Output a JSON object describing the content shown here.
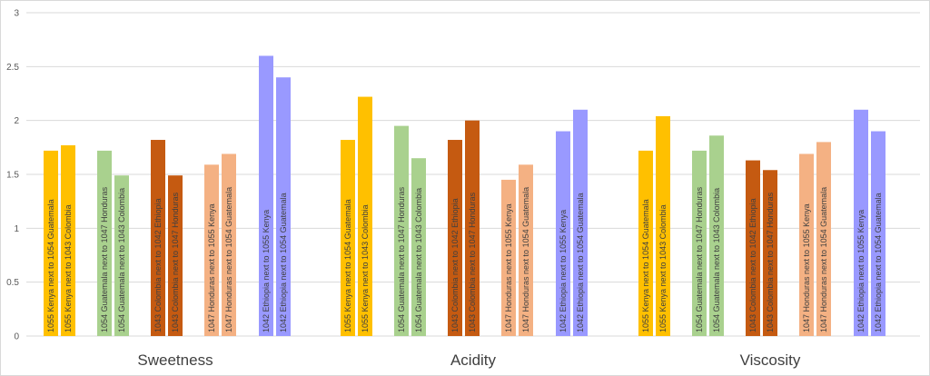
{
  "chart_data": {
    "type": "bar",
    "title": "",
    "xlabel": "",
    "ylabel": "",
    "ylim": [
      0,
      3
    ],
    "yticks": [
      "0",
      "0.5",
      "1",
      "1.5",
      "2",
      "2.5",
      "3"
    ],
    "grid": true,
    "legend": "none",
    "categories": [
      "Sweetness",
      "Acidity",
      "Viscosity"
    ],
    "series": [
      {
        "label": "1055 Kenya next to 1054 Guatemala",
        "color": "#FFC000",
        "values": [
          1.72,
          1.82,
          1.72
        ]
      },
      {
        "label": "1055 Kenya next to 1043 Colombia",
        "color": "#FFC000",
        "values": [
          1.77,
          2.22,
          2.04
        ]
      },
      {
        "label": "1054 Guatemala next to 1047 Honduras",
        "color": "#A9D18E",
        "values": [
          1.72,
          1.95,
          1.72
        ]
      },
      {
        "label": "1054 Guatemala next to 1043 Colombia",
        "color": "#A9D18E",
        "values": [
          1.49,
          1.65,
          1.86
        ]
      },
      {
        "label": "1043 Colombia next to 1042 Ethiopia",
        "color": "#C55A11",
        "values": [
          1.82,
          1.82,
          1.63
        ]
      },
      {
        "label": "1043 Colombia next to 1047 Honduras",
        "color": "#C55A11",
        "values": [
          1.49,
          2.0,
          1.54
        ]
      },
      {
        "label": "1047 Honduras next to 1055 Kenya",
        "color": "#F4B183",
        "values": [
          1.59,
          1.45,
          1.69
        ]
      },
      {
        "label": "1047 Honduras next to 1054 Guatemala",
        "color": "#F4B183",
        "values": [
          1.69,
          1.59,
          1.8
        ]
      },
      {
        "label": "1042 Ethiopia next to 1055 Kenya",
        "color": "#9999FF",
        "values": [
          2.6,
          1.9,
          2.1
        ]
      },
      {
        "label": "1042 Ethiopia next to 1054 Guatemala",
        "color": "#9999FF",
        "values": [
          2.4,
          2.1,
          1.9
        ]
      }
    ]
  }
}
